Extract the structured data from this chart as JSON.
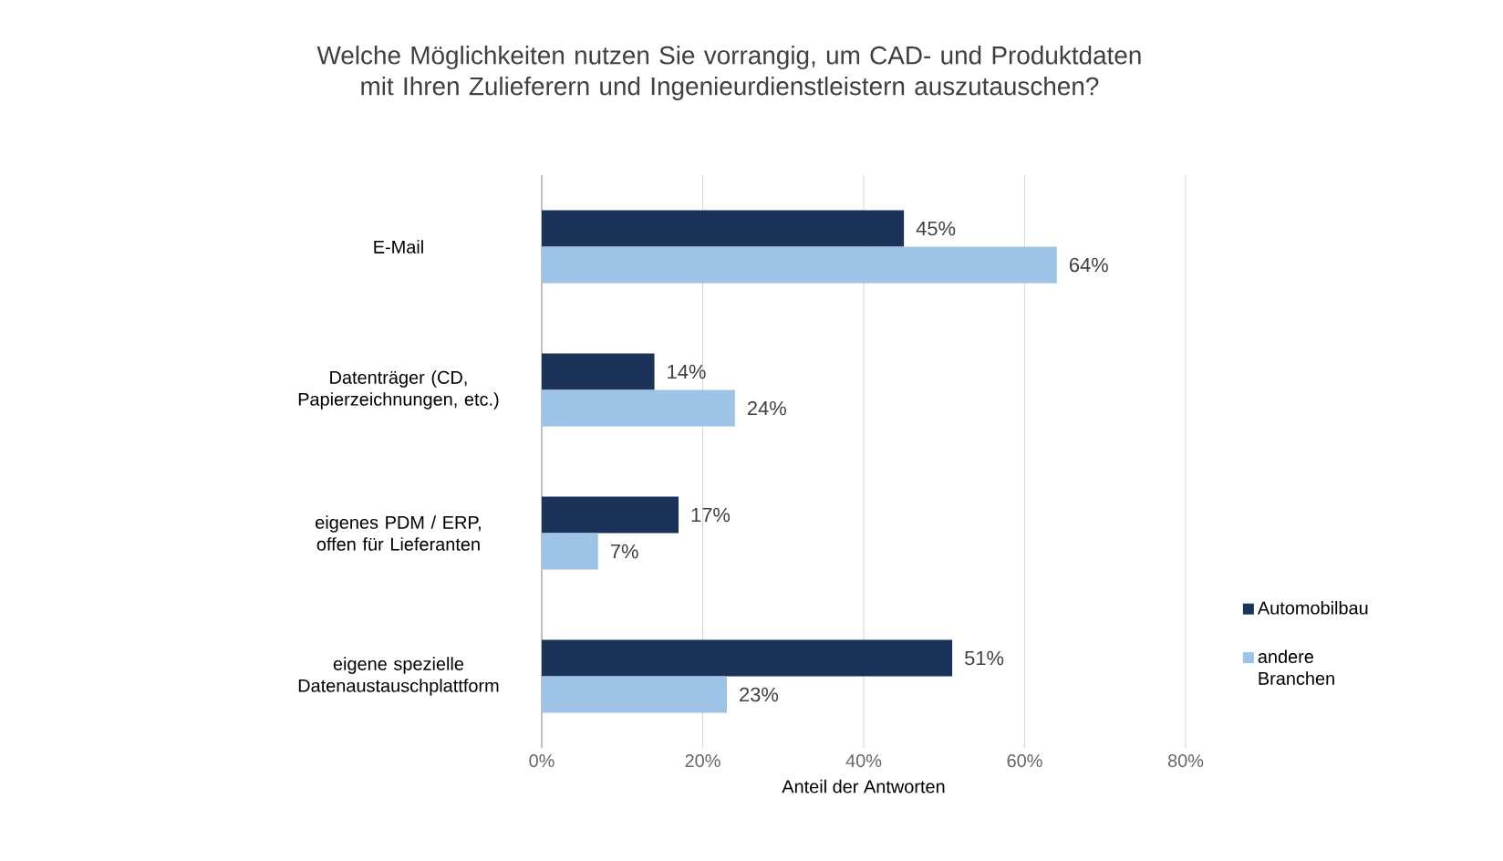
{
  "chart_data": {
    "type": "bar",
    "orientation": "horizontal",
    "title": "Welche Möglichkeiten nutzen Sie vorrangig, um CAD- und Produktdaten mit Ihren Zulieferern und Ingenieurdienstleistern auszutauschen?",
    "categories": [
      "E-Mail",
      "Datenträger (CD, Papierzeichnungen, etc.)",
      "eigenes PDM / ERP, offen für Lieferanten",
      "eigene spezielle Datenaustauschplattform"
    ],
    "series": [
      {
        "name": "Automobilbau",
        "color": "#1b3358",
        "values": [
          45,
          14,
          17,
          51
        ],
        "value_labels": [
          "45%",
          "14%",
          "17%",
          "51%"
        ]
      },
      {
        "name": "andere Branchen",
        "color": "#9dc3e6",
        "values": [
          64,
          24,
          7,
          23
        ],
        "value_labels": [
          "64%",
          "24%",
          "7%",
          "23%"
        ]
      }
    ],
    "xlim": [
      0,
      80
    ],
    "xticks": [
      {
        "value": 0,
        "label": "0%"
      },
      {
        "value": 20,
        "label": "20%"
      },
      {
        "value": 40,
        "label": "40%"
      },
      {
        "value": 60,
        "label": "60%"
      },
      {
        "value": 80,
        "label": "80%"
      }
    ],
    "xlabel": "Anteil der Antworten",
    "grid": "x",
    "legend": "right"
  }
}
